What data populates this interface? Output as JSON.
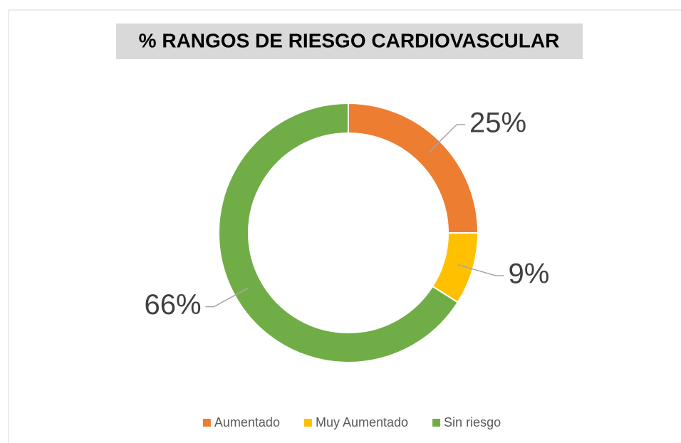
{
  "chart_data": {
    "type": "donut",
    "title": "% RANGOS DE RIESGO CARDIOVASCULAR",
    "categories": [
      "Aumentado",
      "Muy Aumentado",
      "Sin riesgo"
    ],
    "values": [
      25,
      9,
      66
    ],
    "value_labels": [
      "25%",
      "9%",
      "66%"
    ],
    "colors": [
      "#ED7D31",
      "#FFC000",
      "#70AD47"
    ],
    "legend": "bottom"
  }
}
